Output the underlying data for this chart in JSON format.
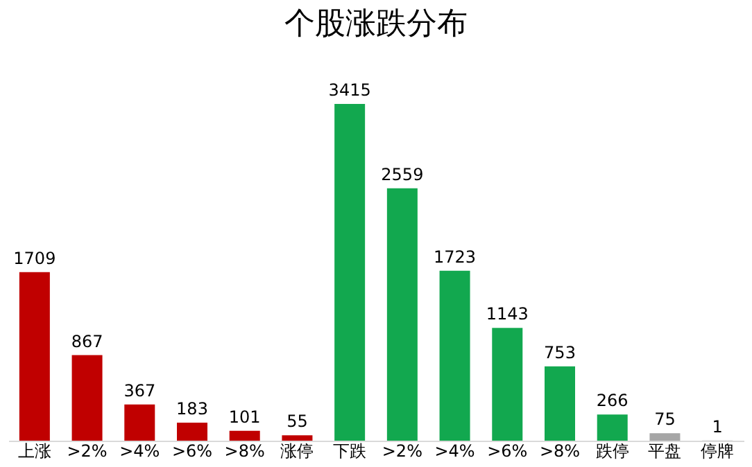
{
  "chart_data": {
    "type": "bar",
    "title": "个股涨跌分布",
    "categories": [
      "上涨",
      ">2%",
      ">4%",
      ">6%",
      ">8%",
      "涨停",
      "下跌",
      ">2%",
      ">4%",
      ">6%",
      ">8%",
      "跌停",
      "平盘",
      "停牌"
    ],
    "values": [
      1709,
      867,
      367,
      183,
      101,
      55,
      3415,
      2559,
      1723,
      1143,
      753,
      266,
      75,
      1
    ],
    "colors": [
      "#c00000",
      "#c00000",
      "#c00000",
      "#c00000",
      "#c00000",
      "#c00000",
      "#12a84f",
      "#12a84f",
      "#12a84f",
      "#12a84f",
      "#12a84f",
      "#12a84f",
      "#a6a6a6",
      "#a6a6a6"
    ],
    "data_labels": true,
    "grid": false,
    "legend": false
  }
}
